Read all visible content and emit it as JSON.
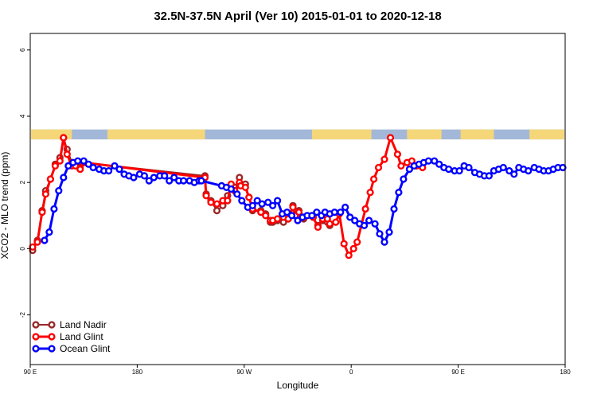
{
  "chart_data": {
    "type": "line",
    "title": "32.5N-37.5N April (Ver 10)   2015-01-01 to 2020-12-18",
    "xlabel": "Longitude",
    "ylabel": "XCO2 - MLO trend (ppm)",
    "x_ticks": [
      {
        "value": -90,
        "label": "90 E"
      },
      {
        "value": 0,
        "label": "180"
      },
      {
        "value": 90,
        "label": "90 W"
      },
      {
        "value": 180,
        "label": "0"
      },
      {
        "value": 270,
        "label": "90 E"
      },
      {
        "value": 360,
        "label": "180"
      }
    ],
    "y_ticks": [
      {
        "value": -2,
        "label": "-2"
      },
      {
        "value": 0,
        "label": "0"
      },
      {
        "value": 2,
        "label": "2"
      },
      {
        "value": 4,
        "label": "4"
      },
      {
        "value": 6,
        "label": "6"
      }
    ],
    "xlim": [
      -90,
      360
    ],
    "ylim": [
      -3.5,
      6.5
    ],
    "legend_position": "bottom-left",
    "land_sea_strip": {
      "y_range": [
        3.3,
        3.6
      ],
      "ocean_color": "#a3b8d8",
      "land_color": "#f5d77a",
      "land_segments": [
        [
          -90,
          -55
        ],
        [
          -25,
          57
        ],
        [
          147,
          197
        ],
        [
          227,
          256
        ],
        [
          272,
          300
        ],
        [
          330,
          360
        ]
      ]
    },
    "series": [
      {
        "name": "Land Nadir",
        "color": "#9a2828",
        "lw": 2,
        "x": [
          -88,
          -84,
          -80,
          -77,
          -73,
          -69,
          -65,
          -62,
          -59,
          -55,
          -52,
          -48,
          -45,
          57,
          58,
          62,
          67,
          72,
          76,
          79,
          82,
          86,
          87,
          91,
          94,
          97,
          104,
          108,
          112,
          114,
          118,
          123,
          127,
          131,
          133,
          136,
          140,
          148,
          152,
          156,
          160,
          162
        ],
        "y": [
          -0.05,
          0.25,
          1.15,
          1.75,
          2.1,
          2.55,
          2.75,
          3.35,
          3.0,
          2.6,
          2.55,
          2.45,
          2.6,
          2.2,
          1.65,
          1.45,
          1.15,
          1.3,
          1.6,
          1.9,
          1.85,
          2.15,
          1.95,
          1.95,
          1.55,
          1.15,
          1.15,
          1.05,
          0.8,
          0.8,
          0.85,
          0.8,
          0.9,
          1.3,
          1.0,
          1.15,
          0.9,
          0.95,
          0.7,
          0.85,
          0.8,
          0.7
        ]
      },
      {
        "name": "Land Glint",
        "color": "#ff0000",
        "lw": 3,
        "x": [
          -88,
          -84,
          -80,
          -77,
          -73,
          -69,
          -65,
          -62,
          -59,
          -55,
          -52,
          -48,
          -45,
          57,
          58,
          62,
          67,
          72,
          76,
          79,
          82,
          86,
          87,
          91,
          94,
          97,
          104,
          108,
          112,
          114,
          118,
          123,
          127,
          131,
          133,
          136,
          140,
          148,
          152,
          156,
          160,
          162,
          167,
          170,
          174,
          178,
          182,
          185,
          192,
          196,
          199,
          203,
          208,
          213,
          219,
          222,
          227,
          231,
          235,
          240
        ],
        "y": [
          0.05,
          0.2,
          1.1,
          1.65,
          2.1,
          2.5,
          2.65,
          3.35,
          2.85,
          2.5,
          2.5,
          2.4,
          2.6,
          2.15,
          1.6,
          1.4,
          1.35,
          1.45,
          1.45,
          1.95,
          1.75,
          2.0,
          1.9,
          1.85,
          1.55,
          1.2,
          1.1,
          1.0,
          0.85,
          0.85,
          0.9,
          0.95,
          0.9,
          1.25,
          1.0,
          1.1,
          0.95,
          0.95,
          0.65,
          0.9,
          0.9,
          0.75,
          0.8,
          1.05,
          0.15,
          -0.2,
          0.0,
          0.2,
          1.2,
          1.7,
          2.1,
          2.45,
          2.7,
          3.35,
          2.85,
          2.5,
          2.6,
          2.65,
          2.5,
          2.45
        ]
      },
      {
        "name": "Ocean Glint",
        "color": "#0000ff",
        "lw": 3,
        "x": [
          -78,
          -74,
          -70,
          -66,
          -62,
          -58,
          -54,
          -50,
          -45,
          -41,
          -37,
          -32,
          -28,
          -24,
          -19,
          -15,
          -11,
          -7,
          -3,
          2,
          6,
          10,
          14,
          19,
          23,
          27,
          31,
          35,
          39,
          44,
          48,
          52,
          54,
          71,
          75,
          79,
          84,
          88,
          93,
          97,
          101,
          105,
          110,
          114,
          118,
          122,
          126,
          130,
          135,
          139,
          143,
          147,
          151,
          155,
          158,
          162,
          166,
          171,
          175,
          179,
          183,
          187,
          191,
          195,
          200,
          204,
          208,
          212,
          216,
          220,
          224,
          229,
          233,
          237,
          241,
          245,
          250,
          254,
          258,
          262,
          267,
          271,
          275,
          279,
          284,
          288,
          292,
          296,
          300,
          304,
          308,
          313,
          317,
          321,
          325,
          329,
          334,
          338,
          342,
          346,
          350,
          354,
          358
        ],
        "y": [
          0.25,
          0.5,
          1.2,
          1.75,
          2.15,
          2.5,
          2.6,
          2.65,
          2.65,
          2.55,
          2.45,
          2.4,
          2.35,
          2.35,
          2.5,
          2.4,
          2.25,
          2.2,
          2.15,
          2.25,
          2.2,
          2.05,
          2.15,
          2.2,
          2.2,
          2.05,
          2.15,
          2.05,
          2.05,
          2.05,
          2.0,
          2.05,
          2.05,
          1.9,
          1.85,
          1.8,
          1.65,
          1.45,
          1.25,
          1.3,
          1.45,
          1.35,
          1.4,
          1.3,
          1.45,
          1.05,
          1.1,
          1.0,
          0.85,
          0.95,
          1.0,
          1.0,
          1.1,
          1.0,
          1.1,
          1.05,
          1.1,
          1.1,
          1.25,
          0.95,
          0.85,
          0.75,
          0.7,
          0.85,
          0.75,
          0.45,
          0.2,
          0.5,
          1.2,
          1.7,
          2.1,
          2.4,
          2.5,
          2.55,
          2.6,
          2.65,
          2.65,
          2.55,
          2.45,
          2.4,
          2.35,
          2.35,
          2.5,
          2.45,
          2.3,
          2.25,
          2.2,
          2.2,
          2.35,
          2.4,
          2.45,
          2.35,
          2.25,
          2.45,
          2.4,
          2.35,
          2.45,
          2.4,
          2.35,
          2.35,
          2.4,
          2.45,
          2.45
        ]
      }
    ]
  }
}
